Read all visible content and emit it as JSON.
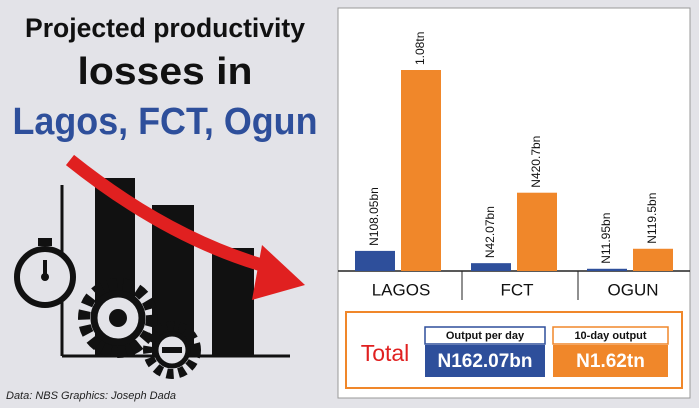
{
  "title": [
    "Projected productivity",
    "losses in",
    "Lagos, FCT, Ogun"
  ],
  "credit": "Data: NBS  Graphics: Joseph Dada",
  "chart_data": {
    "type": "bar",
    "categories": [
      "LAGOS",
      "FCT",
      "OGUN"
    ],
    "series": [
      {
        "name": "Output per day",
        "color": "#2e4f9b",
        "values": [
          108.05,
          42.07,
          11.95
        ],
        "value_labels": [
          "N108.05bn",
          "N42.07bn",
          "N11.95bn"
        ]
      },
      {
        "name": "10-day output",
        "color": "#f0872a",
        "values": [
          1080,
          420.7,
          119.5
        ],
        "value_labels": [
          "1.08tn",
          "N420.7bn",
          "N119.5bn"
        ]
      }
    ],
    "totals_label": "Total",
    "totals": [
      "N162.07bn",
      "N1.62tn"
    ]
  }
}
